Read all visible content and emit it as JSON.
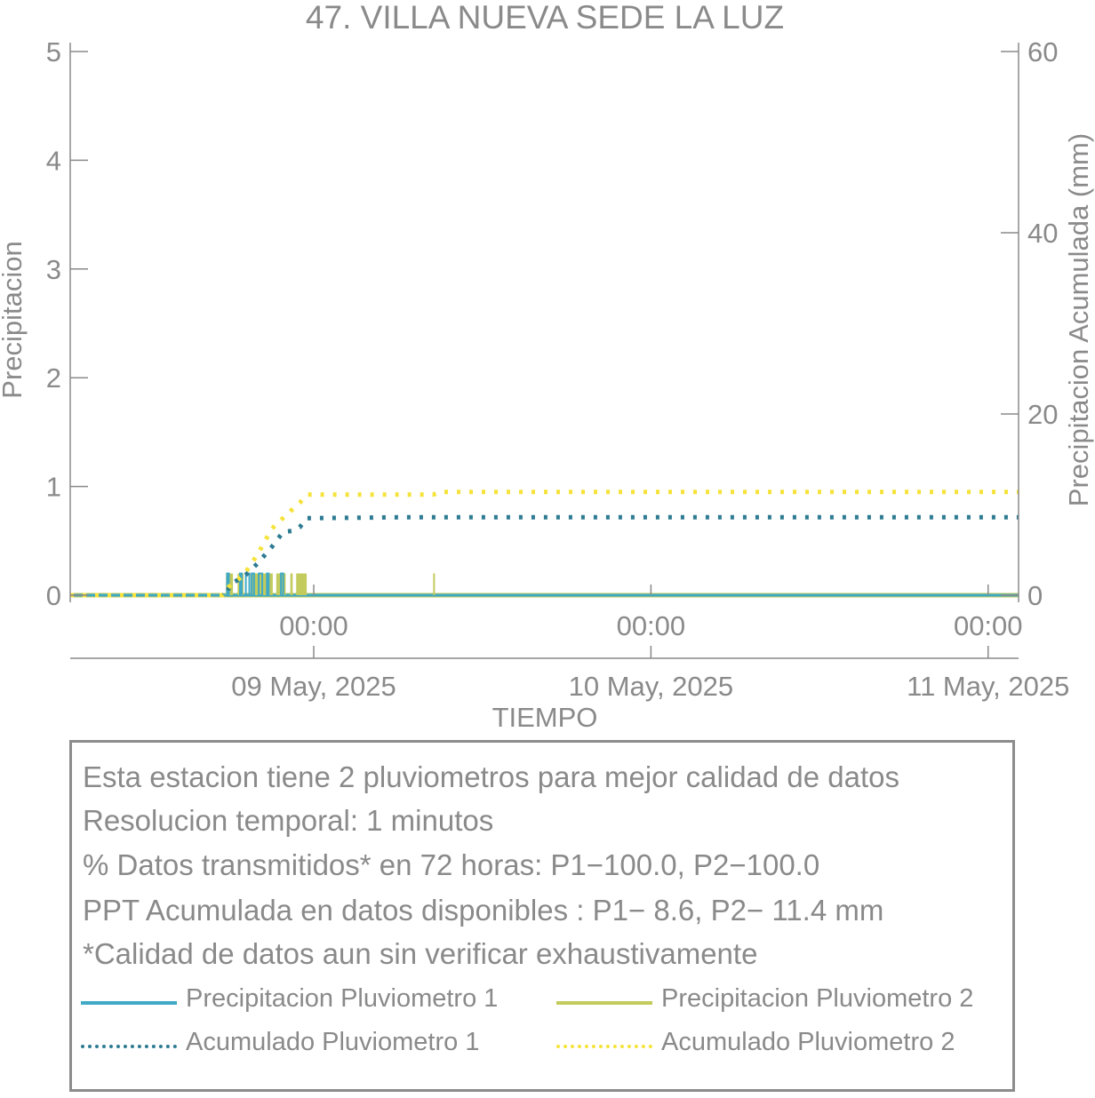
{
  "chart_data": {
    "type": "line",
    "title": "47. VILLA NUEVA SEDE LA LUZ",
    "xlabel": "TIEMPO",
    "ylabel": "Precipitacion",
    "y2label": "Precipitacion Acumulada (mm)",
    "ylim": [
      0,
      5
    ],
    "y2lim": [
      0,
      60
    ],
    "yticks": [
      0,
      1,
      2,
      3,
      4,
      5
    ],
    "y2ticks": [
      0,
      20,
      40,
      60
    ],
    "xlim": [
      "2025-05-08 06:40",
      "2025-05-11 02:10"
    ],
    "xticks": [
      {
        "x": "2025-05-09 00:00",
        "time_label": "00:00",
        "date_label": "09 May, 2025"
      },
      {
        "x": "2025-05-10 00:00",
        "time_label": "00:00",
        "date_label": "10 May, 2025"
      },
      {
        "x": "2025-05-11 00:00",
        "time_label": "00:00",
        "date_label": "11 May, 2025"
      }
    ],
    "grid": false,
    "series": [
      {
        "name": "Precipitacion Pluviometro 1",
        "axis": "left",
        "color": "#3fa9c6",
        "style": "solid",
        "bars": [
          {
            "start": "2025-05-08 17:50",
            "end": "2025-05-08 17:55",
            "value": 0.2
          },
          {
            "start": "2025-05-08 18:45",
            "end": "2025-05-08 18:50",
            "value": 0.2
          },
          {
            "start": "2025-05-08 19:10",
            "end": "2025-05-08 19:25",
            "value": 0.2
          },
          {
            "start": "2025-05-08 19:35",
            "end": "2025-05-08 19:45",
            "value": 0.2
          },
          {
            "start": "2025-05-08 20:05",
            "end": "2025-05-08 20:20",
            "value": 0.2
          },
          {
            "start": "2025-05-08 20:40",
            "end": "2025-05-08 20:45",
            "value": 0.2
          },
          {
            "start": "2025-05-08 21:40",
            "end": "2025-05-08 21:50",
            "value": 0.2
          }
        ]
      },
      {
        "name": "Precipitacion Pluviometro 2",
        "axis": "left",
        "color": "#c2cb5c",
        "style": "solid",
        "bars": [
          {
            "start": "2025-05-08 17:45",
            "end": "2025-05-08 18:15",
            "value": 0.2
          },
          {
            "start": "2025-05-08 18:35",
            "end": "2025-05-08 19:00",
            "value": 0.2
          },
          {
            "start": "2025-05-08 19:30",
            "end": "2025-05-08 21:05",
            "value": 0.2
          },
          {
            "start": "2025-05-08 21:20",
            "end": "2025-05-08 22:00",
            "value": 0.2
          },
          {
            "start": "2025-05-08 22:20",
            "end": "2025-05-08 22:30",
            "value": 0.2
          },
          {
            "start": "2025-05-08 22:45",
            "end": "2025-05-08 23:30",
            "value": 0.2
          },
          {
            "start": "2025-05-09 08:30",
            "end": "2025-05-09 08:35",
            "value": 0.2
          }
        ]
      },
      {
        "name": "Acumulado Pluviometro 1",
        "axis": "right",
        "color": "#2e7b92",
        "style": "dotted",
        "x": [
          "2025-05-08 06:40",
          "2025-05-08 17:50",
          "2025-05-08 18:00",
          "2025-05-08 19:00",
          "2025-05-08 20:00",
          "2025-05-08 21:00",
          "2025-05-08 21:50",
          "2025-05-08 22:30",
          "2025-05-08 23:00",
          "2025-05-08 23:30",
          "2025-05-09 06:00",
          "2025-05-11 02:10"
        ],
        "y": [
          0,
          0,
          1.2,
          2.0,
          3.5,
          5.3,
          7.0,
          7.1,
          7.5,
          8.5,
          8.6,
          8.6
        ]
      },
      {
        "name": "Acumulado Pluviometro 2",
        "axis": "right",
        "color": "#f5e33b",
        "style": "dotted",
        "x": [
          "2025-05-08 06:40",
          "2025-05-08 17:30",
          "2025-05-08 18:00",
          "2025-05-08 19:00",
          "2025-05-08 20:00",
          "2025-05-08 21:00",
          "2025-05-08 22:00",
          "2025-05-08 23:00",
          "2025-05-08 23:30",
          "2025-05-09 08:30",
          "2025-05-09 09:00",
          "2025-05-11 02:10"
        ],
        "y": [
          0,
          0,
          1.0,
          2.2,
          4.5,
          7.3,
          8.8,
          10.2,
          11.1,
          11.1,
          11.4,
          11.4
        ]
      }
    ]
  },
  "info": {
    "lines": [
      "Esta estacion tiene 2 pluviometros para mejor calidad de datos",
      "Resolucion temporal: 1 minutos",
      "% Datos transmitidos* en 72 horas: P1−100.0, P2−100.0",
      "PPT Acumulada en datos disponibles : P1−  8.6, P2− 11.4 mm",
      "*Calidad de datos aun sin verificar exhaustivamente"
    ]
  },
  "legend": [
    {
      "label": "Precipitacion Pluviometro 1",
      "color": "#3fa9c6",
      "style": "solid"
    },
    {
      "label": "Precipitacion Pluviometro 2",
      "color": "#c2cb5c",
      "style": "solid"
    },
    {
      "label": "Acumulado Pluviometro 1",
      "color": "#2e7b92",
      "style": "dotted"
    },
    {
      "label": "Acumulado Pluviometro 2",
      "color": "#f5e33b",
      "style": "dotted"
    }
  ]
}
